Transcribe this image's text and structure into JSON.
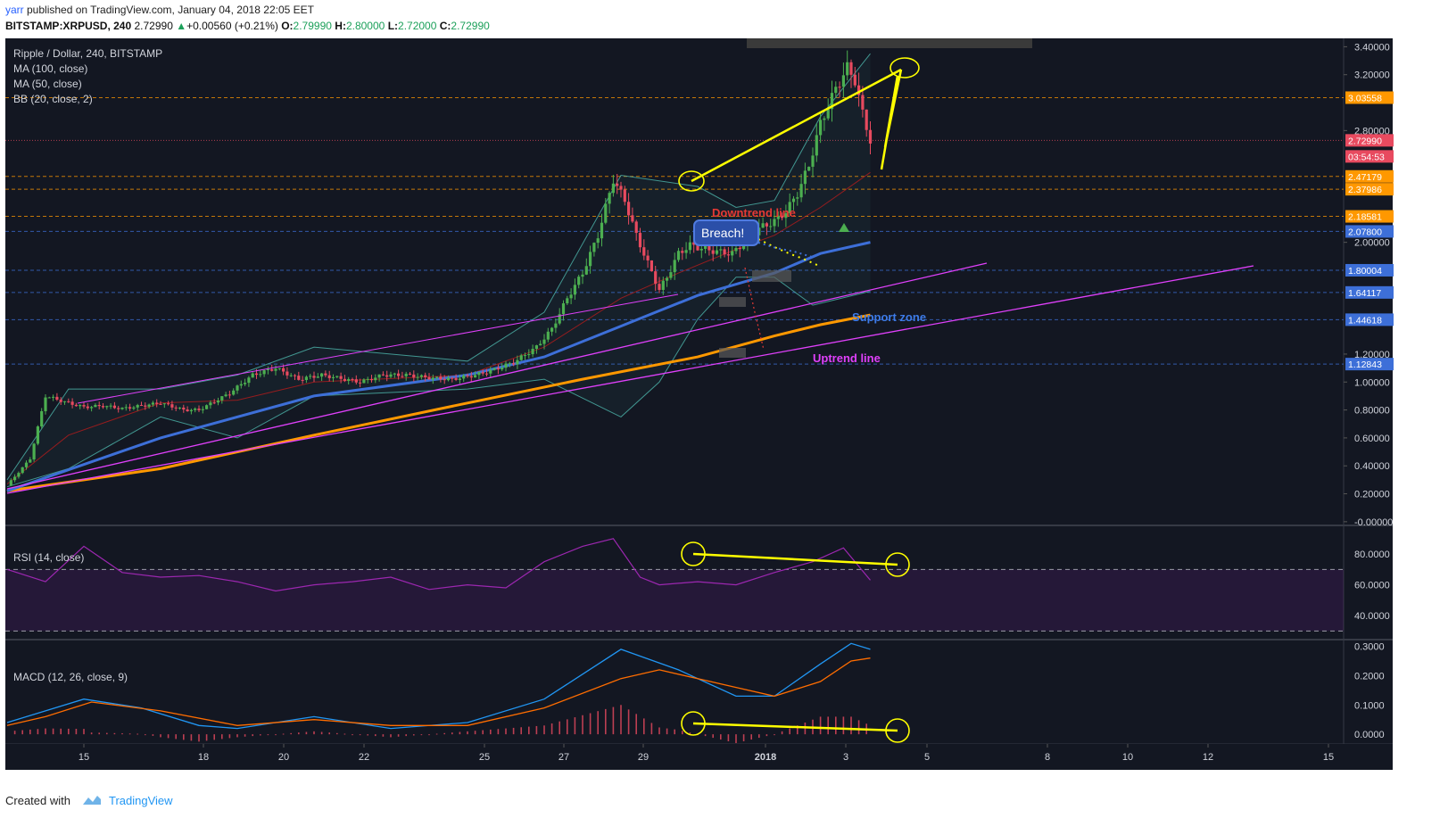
{
  "header": {
    "user": "yarr",
    "published": " published on TradingView.com, January 04, 2018 22:05 EET",
    "symbol": "BITSTAMP:XRPUSD, 240",
    "last": "2.72990",
    "change_arrow": "▲",
    "change": "+0.00560 (+0.21%)",
    "o_label": "O:",
    "o": "2.79990",
    "h_label": "H:",
    "h": "2.80000",
    "l_label": "L:",
    "l": "2.72000",
    "c_label": "C:",
    "c": "2.72990"
  },
  "legend": {
    "title": "Ripple / Dollar, 240, BITSTAMP",
    "ma100": "MA (100, close)",
    "ma50": "MA (50, close)",
    "bb": "BB (20, close, 2)",
    "rsi": "RSI (14, close)",
    "macd": "MACD (12, 26, close, 9)"
  },
  "annotations": {
    "downtrend": "Downtrend line",
    "breach": "Breach!",
    "support": "Support zone",
    "uptrend": "Uptrend line"
  },
  "footer": {
    "created_with": "Created with",
    "brand": "TradingView"
  },
  "colors": {
    "background": "#131722",
    "ma100": "#ff9800",
    "ma50": "#3d6fd8",
    "bb": "#4db6ac",
    "candle_up": "#4caf50",
    "candle_down": "#e84a5f",
    "rsi": "#9c27b0",
    "macd_line": "#2196f3",
    "signal_line": "#ff6d00",
    "trend_line": "#ffff00",
    "uptrend_line": "#e040fb"
  },
  "chart_data": [
    {
      "type": "candlestick",
      "title": "Ripple / Dollar, 240, BITSTAMP",
      "x_ticks": [
        "15",
        "18",
        "20",
        "22",
        "25",
        "27",
        "29",
        "2018",
        "3",
        "5",
        "8",
        "10",
        "12",
        "15"
      ],
      "y_ticks": [
        "3.40000",
        "3.20000",
        "2.80000",
        "2.00000",
        "1.20000",
        "1.00000",
        "0.80000",
        "0.60000",
        "0.40000",
        "0.20000",
        "-0.00000"
      ],
      "ylim": [
        -0.02,
        3.46
      ],
      "price_labels": [
        {
          "value": 3.03558,
          "label": "3.03558",
          "color": "#ff9800"
        },
        {
          "value": 2.7299,
          "label": "2.72990",
          "color": "#e84a5f"
        },
        {
          "value": 2.7299,
          "label": "03:54:53",
          "color": "#e84a5f"
        },
        {
          "value": 2.47179,
          "label": "2.47179",
          "color": "#ff9800"
        },
        {
          "value": 2.37986,
          "label": "2.37986",
          "color": "#ff9800"
        },
        {
          "value": 2.18581,
          "label": "2.18581",
          "color": "#ff9800"
        },
        {
          "value": 2.078,
          "label": "2.07800",
          "color": "#3d6fd8"
        },
        {
          "value": 1.80004,
          "label": "1.80004",
          "color": "#3d6fd8"
        },
        {
          "value": 1.64117,
          "label": "1.64117",
          "color": "#3d6fd8"
        },
        {
          "value": 1.44618,
          "label": "1.44618",
          "color": "#3d6fd8"
        },
        {
          "value": 1.12843,
          "label": "1.12843",
          "color": "#3d6fd8"
        }
      ],
      "close_points": [
        [
          0,
          0.26
        ],
        [
          6,
          0.45
        ],
        [
          10,
          0.9
        ],
        [
          16,
          0.85
        ],
        [
          20,
          0.82
        ],
        [
          25,
          0.83
        ],
        [
          30,
          0.81
        ],
        [
          40,
          0.85
        ],
        [
          46,
          0.8
        ],
        [
          50,
          0.8
        ],
        [
          58,
          0.92
        ],
        [
          64,
          1.05
        ],
        [
          70,
          1.1
        ],
        [
          76,
          1.02
        ],
        [
          82,
          1.05
        ],
        [
          88,
          1.02
        ],
        [
          92,
          1.0
        ],
        [
          98,
          1.05
        ],
        [
          104,
          1.05
        ],
        [
          110,
          1.03
        ],
        [
          116,
          1.02
        ],
        [
          122,
          1.05
        ],
        [
          126,
          1.08
        ],
        [
          132,
          1.14
        ],
        [
          138,
          1.25
        ],
        [
          142,
          1.38
        ],
        [
          146,
          1.6
        ],
        [
          150,
          1.78
        ],
        [
          154,
          2.05
        ],
        [
          158,
          2.45
        ],
        [
          161,
          2.3
        ],
        [
          164,
          2.05
        ],
        [
          167,
          1.85
        ],
        [
          170,
          1.66
        ],
        [
          172,
          1.75
        ],
        [
          175,
          1.92
        ],
        [
          178,
          1.98
        ],
        [
          182,
          1.95
        ],
        [
          186,
          1.93
        ],
        [
          189,
          1.92
        ],
        [
          192,
          2.0
        ],
        [
          196,
          2.1
        ],
        [
          200,
          2.15
        ],
        [
          203,
          2.22
        ],
        [
          206,
          2.35
        ],
        [
          209,
          2.55
        ],
        [
          212,
          2.85
        ],
        [
          216,
          3.1
        ],
        [
          219,
          3.25
        ],
        [
          221,
          3.16
        ],
        [
          223,
          2.92
        ],
        [
          225,
          2.73
        ]
      ],
      "ma50_points": [
        [
          0,
          0.22
        ],
        [
          40,
          0.6
        ],
        [
          80,
          0.9
        ],
        [
          120,
          1.05
        ],
        [
          140,
          1.18
        ],
        [
          160,
          1.4
        ],
        [
          180,
          1.62
        ],
        [
          200,
          1.78
        ],
        [
          212,
          1.92
        ],
        [
          225,
          2.0
        ]
      ],
      "ma100_points": [
        [
          0,
          0.22
        ],
        [
          40,
          0.38
        ],
        [
          80,
          0.62
        ],
        [
          120,
          0.85
        ],
        [
          150,
          1.02
        ],
        [
          180,
          1.18
        ],
        [
          200,
          1.33
        ],
        [
          212,
          1.41
        ],
        [
          225,
          1.48
        ]
      ],
      "bb_upper_points": [
        [
          0,
          0.3
        ],
        [
          16,
          0.95
        ],
        [
          40,
          0.95
        ],
        [
          60,
          1.05
        ],
        [
          80,
          1.25
        ],
        [
          120,
          1.15
        ],
        [
          140,
          1.5
        ],
        [
          160,
          2.48
        ],
        [
          180,
          2.4
        ],
        [
          190,
          2.25
        ],
        [
          200,
          2.3
        ],
        [
          212,
          2.9
        ],
        [
          225,
          3.35
        ]
      ],
      "bb_lower_points": [
        [
          0,
          0.25
        ],
        [
          16,
          0.38
        ],
        [
          40,
          0.75
        ],
        [
          60,
          0.6
        ],
        [
          80,
          0.9
        ],
        [
          120,
          0.95
        ],
        [
          140,
          1.02
        ],
        [
          160,
          0.75
        ],
        [
          170,
          1.0
        ],
        [
          180,
          1.45
        ],
        [
          190,
          1.75
        ],
        [
          200,
          1.75
        ],
        [
          210,
          1.55
        ],
        [
          225,
          1.65
        ]
      ],
      "bb_mid_points": [
        [
          0,
          0.27
        ],
        [
          16,
          0.62
        ],
        [
          40,
          0.85
        ],
        [
          60,
          0.87
        ],
        [
          80,
          1.0
        ],
        [
          120,
          1.05
        ],
        [
          140,
          1.25
        ],
        [
          160,
          1.6
        ],
        [
          175,
          1.78
        ],
        [
          190,
          1.95
        ],
        [
          200,
          2.05
        ],
        [
          212,
          2.25
        ],
        [
          225,
          2.5
        ]
      ]
    },
    {
      "type": "line",
      "title": "RSI (14, close)",
      "y_ticks": [
        "80.0000",
        "60.0000",
        "40.0000"
      ],
      "ylim": [
        25,
        98
      ],
      "levels": [
        70,
        30
      ],
      "points": [
        [
          0,
          70
        ],
        [
          10,
          62
        ],
        [
          20,
          85
        ],
        [
          30,
          68
        ],
        [
          40,
          65
        ],
        [
          50,
          66
        ],
        [
          60,
          62
        ],
        [
          70,
          56
        ],
        [
          80,
          60
        ],
        [
          90,
          62
        ],
        [
          100,
          65
        ],
        [
          110,
          57
        ],
        [
          120,
          60
        ],
        [
          130,
          58
        ],
        [
          140,
          75
        ],
        [
          150,
          85
        ],
        [
          158,
          90
        ],
        [
          165,
          65
        ],
        [
          170,
          60
        ],
        [
          180,
          62
        ],
        [
          190,
          60
        ],
        [
          200,
          68
        ],
        [
          210,
          75
        ],
        [
          218,
          84
        ],
        [
          222,
          72
        ],
        [
          225,
          63
        ]
      ]
    },
    {
      "type": "line",
      "title": "MACD (12, 26, close, 9)",
      "y_ticks": [
        "0.3000",
        "0.2000",
        "0.1000",
        "0.0000"
      ],
      "ylim": [
        -0.03,
        0.32
      ],
      "series": [
        {
          "name": "MACD",
          "points": [
            [
              0,
              0.04
            ],
            [
              10,
              0.08
            ],
            [
              20,
              0.12
            ],
            [
              35,
              0.09
            ],
            [
              50,
              0.03
            ],
            [
              60,
              0.02
            ],
            [
              80,
              0.06
            ],
            [
              100,
              0.02
            ],
            [
              120,
              0.04
            ],
            [
              140,
              0.12
            ],
            [
              160,
              0.29
            ],
            [
              175,
              0.22
            ],
            [
              190,
              0.13
            ],
            [
              200,
              0.13
            ],
            [
              212,
              0.24
            ],
            [
              220,
              0.31
            ],
            [
              225,
              0.29
            ]
          ]
        },
        {
          "name": "Signal",
          "points": [
            [
              0,
              0.03
            ],
            [
              10,
              0.06
            ],
            [
              22,
              0.11
            ],
            [
              40,
              0.08
            ],
            [
              60,
              0.03
            ],
            [
              80,
              0.05
            ],
            [
              100,
              0.03
            ],
            [
              120,
              0.03
            ],
            [
              140,
              0.09
            ],
            [
              160,
              0.19
            ],
            [
              170,
              0.22
            ],
            [
              190,
              0.16
            ],
            [
              200,
              0.13
            ],
            [
              212,
              0.18
            ],
            [
              220,
              0.25
            ],
            [
              225,
              0.26
            ]
          ]
        }
      ]
    }
  ]
}
